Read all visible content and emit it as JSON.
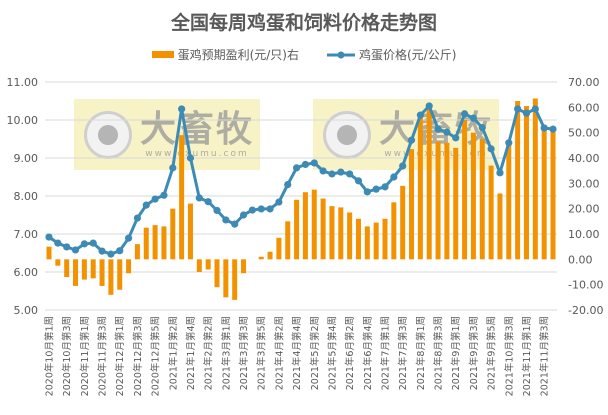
{
  "chart_data": {
    "type": "bar+line",
    "title": "全国每周鸡蛋和饲料价格走势图",
    "legend": [
      {
        "name": "蛋鸡预期盈利(元/只)右",
        "type": "bar",
        "axis": "right",
        "color": "#F39200"
      },
      {
        "name": "鸡蛋价格(元/公斤)",
        "type": "line",
        "axis": "left",
        "color": "#3D8BB5"
      }
    ],
    "legend_position": "top",
    "grid": true,
    "left_axis": {
      "min": 5,
      "max": 11,
      "step": 1,
      "ticks": [
        "5.00",
        "6.00",
        "7.00",
        "8.00",
        "9.00",
        "10.00",
        "11.00"
      ]
    },
    "right_axis": {
      "min": -20,
      "max": 70,
      "step": 10,
      "ticks": [
        "-20.00",
        "-10.00",
        "0.00",
        "10.00",
        "20.00",
        "30.00",
        "40.00",
        "50.00",
        "60.00",
        "70.00"
      ]
    },
    "xlabel": "",
    "ylabel": "",
    "x_tick_labels": [
      "2020年10月第1周",
      "2020年10月第3周",
      "2020年11月第1周",
      "2020年11月第3周",
      "2020年12月第1周",
      "2020年12月第3周",
      "2020年12月第5周",
      "2021年1月第2周",
      "2021年1月第4周",
      "2021年2月第2周",
      "2021年3月第1周",
      "2021年3月第3周",
      "2021年3月第5周",
      "2021年4月第2周",
      "2021年4月第4周",
      "2021年5月第2周",
      "2021年5月第4周",
      "2021年6月第2周",
      "2021年6月第4周",
      "2021年7月第1周",
      "2021年7月第3周",
      "2021年8月第1周",
      "2021年8月第3周",
      "2021年9月第1周",
      "2021年9月第3周",
      "2021年9月第5周",
      "2021年10月第3周",
      "2021年11月第1周",
      "2021年11月第3周"
    ],
    "x_tick_every": 2,
    "n_points": 58,
    "series": [
      {
        "name": "蛋鸡预期盈利(元/只)右",
        "type": "bar",
        "values": [
          5,
          -2.5,
          -7,
          -10.5,
          -8,
          -7.5,
          -10.5,
          -14,
          -12,
          -5.5,
          6,
          12.5,
          13.5,
          13,
          20,
          49,
          22,
          -5,
          -4,
          -11,
          -15,
          -16,
          -5.5,
          null,
          1,
          3,
          8.5,
          15,
          23.5,
          26.5,
          27.5,
          24,
          21,
          20.5,
          18.5,
          16,
          13,
          14.5,
          16,
          22.5,
          29,
          43.5,
          57,
          61,
          46.5,
          46,
          44,
          55,
          50,
          47.5,
          37,
          26,
          45,
          62.5,
          60.5,
          63.5,
          53,
          52
        ]
      },
      {
        "name": "鸡蛋价格(元/公斤)",
        "type": "line",
        "values": [
          6.92,
          6.76,
          6.66,
          6.58,
          6.74,
          6.76,
          6.55,
          6.47,
          6.56,
          6.89,
          7.42,
          7.76,
          7.92,
          8.02,
          8.74,
          10.29,
          9.0,
          7.95,
          7.85,
          7.62,
          7.37,
          7.26,
          7.5,
          7.63,
          7.66,
          7.66,
          7.84,
          8.3,
          8.74,
          8.83,
          8.87,
          8.66,
          8.58,
          8.63,
          8.58,
          8.4,
          8.11,
          8.18,
          8.24,
          8.5,
          8.79,
          9.47,
          10.13,
          10.37,
          9.76,
          9.68,
          9.53,
          10.16,
          10.05,
          9.8,
          9.24,
          8.61,
          9.4,
          10.29,
          10.18,
          10.29,
          9.79,
          9.76
        ]
      }
    ]
  },
  "watermarks": [
    {
      "text": "大畜牧",
      "url": "www.dxumu.com"
    },
    {
      "text": "大畜牧",
      "url": "www.dxumu.com"
    }
  ]
}
